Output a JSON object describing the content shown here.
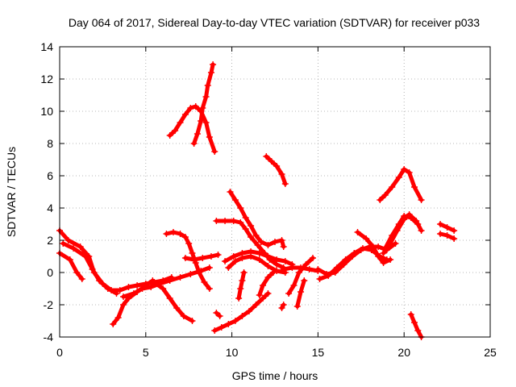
{
  "chart_data": {
    "type": "scatter",
    "title": "Day 064 of 2017, Sidereal Day-to-day VTEC variation (SDTVAR) for receiver p033",
    "xlabel": "GPS time / hours",
    "ylabel": "SDTVAR / TECUs",
    "xlim": [
      0,
      25
    ],
    "ylim": [
      -4,
      14
    ],
    "xticks": [
      "0",
      "5",
      "10",
      "15",
      "20",
      "25"
    ],
    "yticks": [
      "-4",
      "-2",
      "0",
      "2",
      "4",
      "6",
      "8",
      "10",
      "12",
      "14"
    ],
    "grid": true,
    "marker": "+",
    "color": "#ff0000",
    "series": [
      {
        "points": [
          [
            0.0,
            2.6
          ],
          [
            0.5,
            2.0
          ],
          [
            1.2,
            1.6
          ],
          [
            1.7,
            1.0
          ],
          [
            2.0,
            0.0
          ],
          [
            2.5,
            -0.7
          ],
          [
            3.0,
            -1.1
          ],
          [
            3.5,
            -1.1
          ],
          [
            4.0,
            -0.9
          ],
          [
            4.5,
            -0.8
          ],
          [
            5.0,
            -0.7
          ],
          [
            5.5,
            -0.6
          ],
          [
            6.0,
            -0.5
          ],
          [
            6.5,
            -0.3
          ]
        ]
      },
      {
        "points": [
          [
            0.0,
            1.2
          ],
          [
            0.6,
            0.8
          ],
          [
            1.0,
            0.0
          ],
          [
            1.3,
            -0.4
          ]
        ]
      },
      {
        "points": [
          [
            0.2,
            1.8
          ],
          [
            0.8,
            1.5
          ],
          [
            1.5,
            1.0
          ],
          [
            1.9,
            0.2
          ],
          [
            2.3,
            -0.5
          ],
          [
            2.8,
            -1.0
          ],
          [
            3.3,
            -1.3
          ]
        ]
      },
      {
        "points": [
          [
            3.1,
            -3.2
          ],
          [
            3.4,
            -2.8
          ],
          [
            3.7,
            -2.0
          ],
          [
            4.0,
            -1.6
          ],
          [
            4.5,
            -1.2
          ],
          [
            5.0,
            -0.8
          ],
          [
            5.4,
            -0.5
          ]
        ]
      },
      {
        "points": [
          [
            3.7,
            -1.5
          ],
          [
            4.3,
            -1.3
          ],
          [
            4.8,
            -1.0
          ],
          [
            5.3,
            -0.9
          ],
          [
            5.8,
            -0.7
          ],
          [
            6.4,
            -0.5
          ],
          [
            7.0,
            -0.3
          ],
          [
            7.6,
            -0.1
          ],
          [
            8.2,
            0.1
          ],
          [
            8.7,
            0.3
          ]
        ]
      },
      {
        "points": [
          [
            5.6,
            -0.7
          ],
          [
            6.0,
            -1.0
          ],
          [
            6.4,
            -1.6
          ],
          [
            6.8,
            -2.2
          ],
          [
            7.2,
            -2.7
          ],
          [
            7.7,
            -3.0
          ]
        ]
      },
      {
        "points": [
          [
            6.2,
            2.4
          ],
          [
            6.6,
            2.5
          ],
          [
            7.0,
            2.4
          ],
          [
            7.3,
            2.2
          ],
          [
            7.5,
            1.8
          ],
          [
            7.7,
            1.2
          ],
          [
            7.9,
            0.6
          ],
          [
            8.1,
            0.0
          ],
          [
            8.4,
            -0.6
          ],
          [
            8.7,
            -1.0
          ]
        ]
      },
      {
        "points": [
          [
            7.3,
            0.9
          ],
          [
            7.8,
            0.8
          ],
          [
            8.3,
            0.9
          ],
          [
            8.8,
            1.0
          ],
          [
            9.2,
            1.1
          ]
        ]
      },
      {
        "points": [
          [
            6.4,
            8.5
          ],
          [
            6.7,
            8.8
          ],
          [
            7.0,
            9.3
          ],
          [
            7.3,
            9.8
          ],
          [
            7.6,
            10.2
          ],
          [
            7.9,
            10.3
          ],
          [
            8.2,
            10.0
          ],
          [
            8.5,
            9.3
          ],
          [
            8.7,
            8.4
          ],
          [
            9.0,
            7.5
          ]
        ]
      },
      {
        "points": [
          [
            7.8,
            8.0
          ],
          [
            8.0,
            8.6
          ],
          [
            8.2,
            9.4
          ],
          [
            8.3,
            10.2
          ],
          [
            8.5,
            10.9
          ],
          [
            8.6,
            11.6
          ],
          [
            8.8,
            12.4
          ],
          [
            8.9,
            12.9
          ]
        ]
      },
      {
        "points": [
          [
            9.0,
            -3.6
          ],
          [
            9.4,
            -3.4
          ],
          [
            9.8,
            -3.2
          ],
          [
            10.2,
            -3.0
          ],
          [
            10.6,
            -2.7
          ],
          [
            11.0,
            -2.4
          ],
          [
            11.4,
            -2.0
          ],
          [
            11.8,
            -1.6
          ],
          [
            12.1,
            -1.3
          ]
        ]
      },
      {
        "points": [
          [
            9.3,
            -2.7
          ],
          [
            9.1,
            -2.5
          ]
        ]
      },
      {
        "points": [
          [
            9.1,
            3.2
          ],
          [
            9.6,
            3.2
          ],
          [
            10.1,
            3.2
          ],
          [
            10.5,
            3.1
          ],
          [
            10.8,
            2.7
          ],
          [
            11.1,
            2.2
          ],
          [
            11.5,
            1.7
          ],
          [
            11.9,
            1.2
          ],
          [
            12.2,
            0.8
          ],
          [
            12.6,
            0.5
          ],
          [
            13.0,
            0.3
          ]
        ]
      },
      {
        "points": [
          [
            9.9,
            5.0
          ],
          [
            10.2,
            4.5
          ],
          [
            10.5,
            4.0
          ],
          [
            10.8,
            3.4
          ],
          [
            11.1,
            2.9
          ],
          [
            11.4,
            2.3
          ],
          [
            11.7,
            1.9
          ],
          [
            12.1,
            1.7
          ],
          [
            12.5,
            1.9
          ],
          [
            12.9,
            2.0
          ],
          [
            13.0,
            1.6
          ]
        ]
      },
      {
        "points": [
          [
            9.6,
            0.7
          ],
          [
            10.1,
            1.0
          ],
          [
            10.6,
            1.2
          ],
          [
            11.1,
            1.3
          ],
          [
            11.6,
            1.2
          ],
          [
            12.1,
            1.0
          ],
          [
            12.6,
            0.8
          ],
          [
            13.1,
            0.7
          ],
          [
            13.5,
            0.5
          ]
        ]
      },
      {
        "points": [
          [
            9.8,
            0.3
          ],
          [
            10.2,
            0.7
          ],
          [
            10.6,
            0.9
          ],
          [
            11.1,
            1.0
          ],
          [
            11.6,
            0.8
          ],
          [
            12.1,
            0.4
          ],
          [
            12.6,
            0.1
          ],
          [
            13.1,
            0.0
          ]
        ]
      },
      {
        "points": [
          [
            10.4,
            -1.6
          ],
          [
            10.5,
            -1.0
          ],
          [
            10.6,
            -0.5
          ],
          [
            10.7,
            0.0
          ]
        ]
      },
      {
        "points": [
          [
            11.6,
            -1.4
          ],
          [
            11.8,
            -0.8
          ],
          [
            12.1,
            -0.3
          ],
          [
            12.4,
            0.0
          ]
        ]
      },
      {
        "points": [
          [
            12.0,
            7.2
          ],
          [
            12.3,
            6.9
          ],
          [
            12.6,
            6.6
          ],
          [
            12.9,
            6.1
          ],
          [
            13.1,
            5.5
          ]
        ]
      },
      {
        "points": [
          [
            12.9,
            -2.2
          ],
          [
            13.0,
            -2.0
          ]
        ]
      },
      {
        "points": [
          [
            13.0,
            0.2
          ],
          [
            13.5,
            0.3
          ],
          [
            14.0,
            0.3
          ],
          [
            14.5,
            0.2
          ],
          [
            15.0,
            0.1
          ]
        ]
      },
      {
        "points": [
          [
            13.3,
            -1.3
          ],
          [
            13.6,
            -0.8
          ],
          [
            13.9,
            0.0
          ],
          [
            14.3,
            0.5
          ],
          [
            14.7,
            0.9
          ]
        ]
      },
      {
        "points": [
          [
            13.8,
            -2.1
          ],
          [
            14.0,
            -1.2
          ],
          [
            14.2,
            -0.5
          ]
        ]
      },
      {
        "points": [
          [
            15.0,
            0.2
          ],
          [
            15.5,
            -0.1
          ],
          [
            16.0,
            0.0
          ],
          [
            16.5,
            0.5
          ],
          [
            17.0,
            1.0
          ],
          [
            17.5,
            1.4
          ],
          [
            18.0,
            1.6
          ],
          [
            18.5,
            1.6
          ],
          [
            19.0,
            1.4
          ],
          [
            19.5,
            1.8
          ]
        ]
      },
      {
        "points": [
          [
            15.1,
            -0.4
          ],
          [
            15.6,
            -0.2
          ],
          [
            16.1,
            0.3
          ],
          [
            16.6,
            0.8
          ],
          [
            17.1,
            1.2
          ],
          [
            17.6,
            1.5
          ],
          [
            18.1,
            1.4
          ],
          [
            18.6,
            1.0
          ],
          [
            19.0,
            0.8
          ]
        ]
      },
      {
        "points": [
          [
            17.3,
            2.5
          ],
          [
            17.8,
            2.1
          ],
          [
            18.2,
            1.6
          ],
          [
            18.5,
            1.0
          ],
          [
            18.8,
            0.6
          ],
          [
            19.2,
            0.8
          ]
        ]
      },
      {
        "points": [
          [
            18.6,
            4.5
          ],
          [
            18.9,
            4.8
          ],
          [
            19.3,
            5.3
          ],
          [
            19.7,
            5.9
          ],
          [
            20.0,
            6.4
          ],
          [
            20.3,
            6.2
          ],
          [
            20.6,
            5.3
          ],
          [
            21.0,
            4.5
          ]
        ]
      },
      {
        "points": [
          [
            18.8,
            1.2
          ],
          [
            19.2,
            1.8
          ],
          [
            19.6,
            2.6
          ],
          [
            20.0,
            3.3
          ],
          [
            20.3,
            3.6
          ],
          [
            20.7,
            3.2
          ],
          [
            21.0,
            2.6
          ]
        ]
      },
      {
        "points": [
          [
            18.9,
            1.5
          ],
          [
            19.3,
            2.3
          ],
          [
            19.7,
            3.0
          ],
          [
            20.0,
            3.5
          ],
          [
            20.4,
            3.4
          ],
          [
            20.8,
            3.0
          ]
        ]
      },
      {
        "points": [
          [
            20.4,
            -2.6
          ],
          [
            20.6,
            -3.1
          ],
          [
            20.8,
            -3.6
          ],
          [
            21.0,
            -4.0
          ]
        ]
      },
      {
        "points": [
          [
            22.1,
            3.0
          ],
          [
            22.5,
            2.8
          ],
          [
            22.9,
            2.6
          ]
        ]
      },
      {
        "points": [
          [
            22.1,
            2.4
          ],
          [
            22.5,
            2.3
          ],
          [
            22.9,
            2.1
          ]
        ]
      }
    ]
  }
}
